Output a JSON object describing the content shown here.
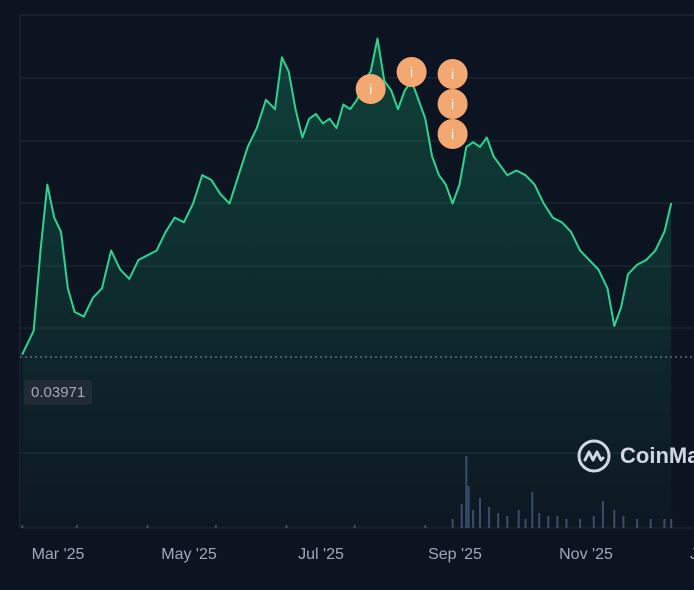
{
  "price_label": "0.03971",
  "watermark": {
    "text": "CoinMa",
    "icon": "coinmarketcap-logo"
  },
  "event_marker_glyph": "i",
  "colors": {
    "background": "#0d1421",
    "line": "#2dd48f",
    "grid": "#222a36",
    "marker": "#f4a871",
    "volume": "#3a4e6b",
    "tick": "#a1a7bb"
  },
  "chart_data": {
    "type": "area",
    "title": "",
    "xlabel": "",
    "ylabel": "",
    "x_ticks": [
      "Mar '25",
      "May '25",
      "Jul '25",
      "Sep '25",
      "Nov '25",
      "J"
    ],
    "y_range_note": "y axis tick labels not shown",
    "reference_line": 0.03971,
    "grid": true,
    "series": [
      {
        "values": [
          [
            "2025-02-19",
            0.04
          ],
          [
            "2025-02-24",
            0.0425
          ],
          [
            "2025-02-27",
            0.051
          ],
          [
            "2025-03-02",
            0.058
          ],
          [
            "2025-03-05",
            0.0545
          ],
          [
            "2025-03-08",
            0.053
          ],
          [
            "2025-03-11",
            0.047
          ],
          [
            "2025-03-14",
            0.0445
          ],
          [
            "2025-03-18",
            0.044
          ],
          [
            "2025-03-22",
            0.046
          ],
          [
            "2025-03-26",
            0.047
          ],
          [
            "2025-03-30",
            0.051
          ],
          [
            "2025-04-03",
            0.049
          ],
          [
            "2025-04-07",
            0.048
          ],
          [
            "2025-04-11",
            0.05
          ],
          [
            "2025-04-15",
            0.0505
          ],
          [
            "2025-04-19",
            0.051
          ],
          [
            "2025-04-23",
            0.053
          ],
          [
            "2025-04-27",
            0.0545
          ],
          [
            "2025-05-01",
            0.054
          ],
          [
            "2025-05-05",
            0.056
          ],
          [
            "2025-05-09",
            0.059
          ],
          [
            "2025-05-13",
            0.0585
          ],
          [
            "2025-05-17",
            0.057
          ],
          [
            "2025-05-21",
            0.056
          ],
          [
            "2025-05-25",
            0.059
          ],
          [
            "2025-05-29",
            0.062
          ],
          [
            "2025-06-02",
            0.064
          ],
          [
            "2025-06-06",
            0.067
          ],
          [
            "2025-06-10",
            0.066
          ],
          [
            "2025-06-13",
            0.0715
          ],
          [
            "2025-06-16",
            0.07
          ],
          [
            "2025-06-19",
            0.066
          ],
          [
            "2025-06-22",
            0.063
          ],
          [
            "2025-06-25",
            0.065
          ],
          [
            "2025-06-28",
            0.0655
          ],
          [
            "2025-07-01",
            0.0645
          ],
          [
            "2025-07-04",
            0.065
          ],
          [
            "2025-07-07",
            0.064
          ],
          [
            "2025-07-10",
            0.0665
          ],
          [
            "2025-07-13",
            0.066
          ],
          [
            "2025-07-16",
            0.067
          ],
          [
            "2025-07-19",
            0.069
          ],
          [
            "2025-07-22",
            0.07
          ],
          [
            "2025-07-25",
            0.0735
          ],
          [
            "2025-07-28",
            0.069
          ],
          [
            "2025-07-31",
            0.068
          ],
          [
            "2025-08-03",
            0.066
          ],
          [
            "2025-08-06",
            0.068
          ],
          [
            "2025-08-09",
            0.069
          ],
          [
            "2025-08-12",
            0.067
          ],
          [
            "2025-08-15",
            0.065
          ],
          [
            "2025-08-18",
            0.061
          ],
          [
            "2025-08-21",
            0.059
          ],
          [
            "2025-08-24",
            0.058
          ],
          [
            "2025-08-27",
            0.056
          ],
          [
            "2025-08-30",
            0.058
          ],
          [
            "2025-09-02",
            0.062
          ],
          [
            "2025-09-05",
            0.0625
          ],
          [
            "2025-09-08",
            0.062
          ],
          [
            "2025-09-11",
            0.063
          ],
          [
            "2025-09-14",
            0.061
          ],
          [
            "2025-09-17",
            0.06
          ],
          [
            "2025-09-20",
            0.059
          ],
          [
            "2025-09-24",
            0.0595
          ],
          [
            "2025-09-28",
            0.059
          ],
          [
            "2025-10-02",
            0.058
          ],
          [
            "2025-10-06",
            0.056
          ],
          [
            "2025-10-10",
            0.0545
          ],
          [
            "2025-10-14",
            0.054
          ],
          [
            "2025-10-18",
            0.053
          ],
          [
            "2025-10-22",
            0.051
          ],
          [
            "2025-10-26",
            0.05
          ],
          [
            "2025-10-30",
            0.049
          ],
          [
            "2025-11-03",
            0.047
          ],
          [
            "2025-11-06",
            0.043
          ],
          [
            "2025-11-09",
            0.045
          ],
          [
            "2025-11-12",
            0.0485
          ],
          [
            "2025-11-16",
            0.0495
          ],
          [
            "2025-11-20",
            0.05
          ],
          [
            "2025-11-24",
            0.051
          ],
          [
            "2025-11-28",
            0.053
          ],
          [
            "2025-12-01",
            0.056
          ]
        ]
      }
    ],
    "event_markers": [
      {
        "date": "2025-07-22",
        "value": 0.07,
        "stack": 1
      },
      {
        "date": "2025-08-09",
        "value": 0.07,
        "stack": 1
      },
      {
        "date": "2025-08-27",
        "value": 0.07,
        "stack": 3
      }
    ],
    "volume": [
      [
        "2025-02-19",
        1
      ],
      [
        "2025-03-15",
        1
      ],
      [
        "2025-04-15",
        1
      ],
      [
        "2025-05-15",
        1
      ],
      [
        "2025-06-15",
        1
      ],
      [
        "2025-07-15",
        1
      ],
      [
        "2025-08-15",
        1
      ],
      [
        "2025-08-27",
        3
      ],
      [
        "2025-08-31",
        8
      ],
      [
        "2025-09-02",
        24
      ],
      [
        "2025-09-03",
        14
      ],
      [
        "2025-09-05",
        6
      ],
      [
        "2025-09-08",
        10
      ],
      [
        "2025-09-12",
        7
      ],
      [
        "2025-09-16",
        5
      ],
      [
        "2025-09-20",
        4
      ],
      [
        "2025-09-25",
        6
      ],
      [
        "2025-09-28",
        3
      ],
      [
        "2025-10-01",
        12
      ],
      [
        "2025-10-04",
        5
      ],
      [
        "2025-10-08",
        4
      ],
      [
        "2025-10-12",
        4
      ],
      [
        "2025-10-16",
        3
      ],
      [
        "2025-10-22",
        3
      ],
      [
        "2025-10-28",
        4
      ],
      [
        "2025-11-01",
        9
      ],
      [
        "2025-11-06",
        6
      ],
      [
        "2025-11-10",
        4
      ],
      [
        "2025-11-16",
        3
      ],
      [
        "2025-11-22",
        3
      ],
      [
        "2025-11-28",
        3
      ],
      [
        "2025-12-01",
        3
      ]
    ]
  }
}
